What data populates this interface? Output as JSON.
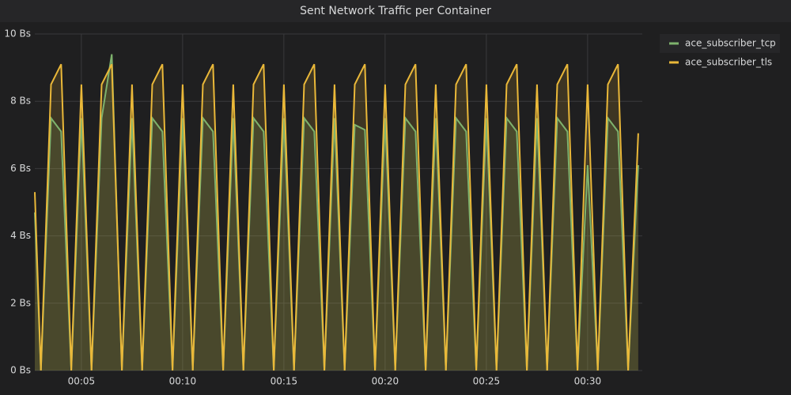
{
  "chart_data": {
    "type": "line",
    "title": "Sent Network Traffic per Container",
    "x": [
      2.7,
      3.0,
      3.5,
      4.0,
      4.5,
      5.0,
      5.5,
      6.0,
      6.5,
      7.0,
      7.5,
      8.0,
      8.5,
      9.0,
      9.5,
      10.0,
      10.5,
      11.0,
      11.5,
      12.0,
      12.5,
      13.0,
      13.5,
      14.0,
      14.5,
      15.0,
      15.5,
      16.0,
      16.5,
      17.0,
      17.5,
      18.0,
      18.5,
      19.0,
      19.5,
      20.0,
      20.5,
      21.0,
      21.5,
      22.0,
      22.5,
      23.0,
      23.5,
      24.0,
      24.5,
      25.0,
      25.5,
      26.0,
      26.5,
      27.0,
      27.5,
      28.0,
      28.5,
      29.0,
      29.5,
      30.0,
      30.5,
      31.0,
      31.5,
      32.0,
      32.5
    ],
    "series": [
      {
        "name": "ace_subscriber_tcp",
        "color": "#7eb26d",
        "values": [
          4.7,
          0,
          7.5,
          7.1,
          0,
          7.5,
          0,
          7.5,
          9.4,
          0,
          7.5,
          0,
          7.5,
          7.1,
          0,
          7.5,
          0,
          7.5,
          7.1,
          0,
          7.5,
          0,
          7.5,
          7.1,
          0,
          7.5,
          0,
          7.5,
          7.1,
          0,
          7.5,
          0,
          7.3,
          7.15,
          0,
          7.5,
          0,
          7.5,
          7.1,
          0,
          7.5,
          0,
          7.5,
          7.1,
          0,
          7.5,
          0,
          7.5,
          7.1,
          0,
          7.5,
          0,
          7.5,
          7.1,
          0,
          6.1,
          0,
          7.5,
          7.1,
          0,
          6.1
        ]
      },
      {
        "name": "ace_subscriber_tls",
        "color": "#eab839",
        "values": [
          5.3,
          0,
          8.5,
          9.1,
          0,
          8.5,
          0,
          8.5,
          9.1,
          0,
          8.5,
          0,
          8.5,
          9.1,
          0,
          8.5,
          0,
          8.5,
          9.1,
          0,
          8.5,
          0,
          8.5,
          9.1,
          0,
          8.5,
          0,
          8.5,
          9.1,
          0,
          8.5,
          0,
          8.5,
          9.1,
          0,
          8.5,
          0,
          8.5,
          9.1,
          0,
          8.5,
          0,
          8.5,
          9.1,
          0,
          8.5,
          0,
          8.5,
          9.1,
          0,
          8.5,
          0,
          8.5,
          9.1,
          0,
          8.5,
          0,
          8.5,
          9.1,
          0,
          7.05
        ]
      }
    ],
    "xlim": [
      2.7,
      32.7
    ],
    "xticks": [
      {
        "value": 5,
        "label": "00:05"
      },
      {
        "value": 10,
        "label": "00:10"
      },
      {
        "value": 15,
        "label": "00:15"
      },
      {
        "value": 20,
        "label": "00:20"
      },
      {
        "value": 25,
        "label": "00:25"
      },
      {
        "value": 30,
        "label": "00:30"
      }
    ],
    "ylim": [
      0,
      10
    ],
    "yticks": [
      {
        "value": 0,
        "label": "0 Bs"
      },
      {
        "value": 2,
        "label": "2 Bs"
      },
      {
        "value": 4,
        "label": "4 Bs"
      },
      {
        "value": 6,
        "label": "6 Bs"
      },
      {
        "value": 8,
        "label": "8 Bs"
      },
      {
        "value": 10,
        "label": "10 Bs"
      }
    ],
    "grid": true
  }
}
